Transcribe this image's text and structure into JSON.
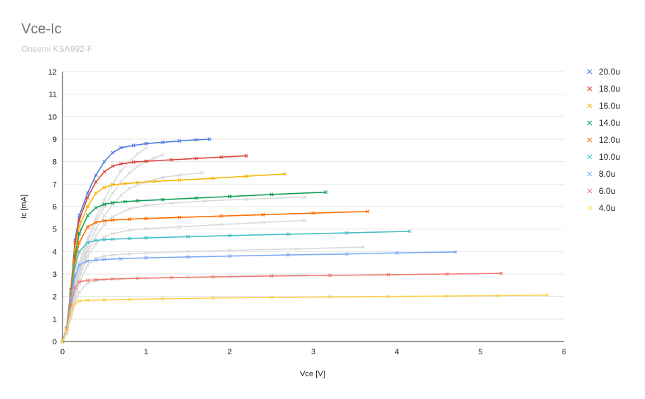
{
  "chart_data": {
    "type": "line",
    "title": "Vce-Ic",
    "subtitle": "Onsemi KSA992-F",
    "xlabel": "Vce [V]",
    "ylabel": "Ic [mA]",
    "xlim": [
      0,
      6
    ],
    "ylim": [
      0,
      12
    ],
    "x_ticks": [
      "0",
      "1",
      "2",
      "3",
      "4",
      "5",
      "6"
    ],
    "y_ticks": [
      "0",
      "1",
      "2",
      "3",
      "4",
      "5",
      "6",
      "7",
      "8",
      "9",
      "10",
      "11",
      "12"
    ],
    "grid": "horizontal",
    "legend_position": "right",
    "marker": "×",
    "series": [
      {
        "name": "20.0u",
        "color": "#4a7de0",
        "x": [
          0,
          0.05,
          0.1,
          0.15,
          0.2,
          0.3,
          0.4,
          0.5,
          0.6,
          0.7,
          0.85,
          1.0,
          1.2,
          1.4,
          1.6,
          1.76
        ],
        "y": [
          0,
          0.6,
          2.3,
          4.5,
          5.6,
          6.6,
          7.4,
          8.0,
          8.4,
          8.62,
          8.72,
          8.8,
          8.86,
          8.92,
          8.97,
          9.0
        ]
      },
      {
        "name": "18.0u",
        "color": "#db4437",
        "x": [
          0,
          0.05,
          0.1,
          0.15,
          0.2,
          0.3,
          0.4,
          0.5,
          0.6,
          0.7,
          0.85,
          1.0,
          1.3,
          1.6,
          1.9,
          2.2
        ],
        "y": [
          0,
          0.6,
          2.3,
          4.4,
          5.4,
          6.4,
          7.1,
          7.55,
          7.8,
          7.9,
          7.98,
          8.02,
          8.08,
          8.14,
          8.2,
          8.26
        ]
      },
      {
        "name": "16.0u",
        "color": "#f4b400",
        "x": [
          0,
          0.05,
          0.1,
          0.15,
          0.2,
          0.3,
          0.4,
          0.5,
          0.6,
          0.75,
          0.9,
          1.1,
          1.4,
          1.8,
          2.2,
          2.66
        ],
        "y": [
          0,
          0.6,
          2.2,
          4.1,
          5.1,
          6.0,
          6.6,
          6.85,
          6.97,
          7.02,
          7.07,
          7.12,
          7.18,
          7.26,
          7.35,
          7.45
        ]
      },
      {
        "name": "14.0u",
        "color": "#0f9d58",
        "x": [
          0,
          0.05,
          0.1,
          0.15,
          0.2,
          0.3,
          0.4,
          0.5,
          0.6,
          0.75,
          0.9,
          1.2,
          1.6,
          2.0,
          2.5,
          3.15
        ],
        "y": [
          0,
          0.6,
          2.1,
          3.8,
          4.8,
          5.6,
          5.95,
          6.1,
          6.17,
          6.22,
          6.26,
          6.31,
          6.38,
          6.45,
          6.54,
          6.64
        ]
      },
      {
        "name": "12.0u",
        "color": "#ff6d01",
        "x": [
          0,
          0.05,
          0.1,
          0.15,
          0.2,
          0.3,
          0.4,
          0.5,
          0.6,
          0.8,
          1.0,
          1.4,
          1.9,
          2.4,
          3.0,
          3.65
        ],
        "y": [
          0,
          0.6,
          2.0,
          3.6,
          4.4,
          5.1,
          5.3,
          5.37,
          5.4,
          5.44,
          5.47,
          5.52,
          5.58,
          5.64,
          5.71,
          5.78
        ]
      },
      {
        "name": "10.0u",
        "color": "#46bdc6",
        "x": [
          0,
          0.05,
          0.1,
          0.15,
          0.2,
          0.3,
          0.4,
          0.5,
          0.6,
          0.8,
          1.0,
          1.5,
          2.0,
          2.7,
          3.4,
          4.15
        ],
        "y": [
          0,
          0.6,
          1.9,
          3.3,
          4.0,
          4.4,
          4.5,
          4.53,
          4.55,
          4.58,
          4.61,
          4.66,
          4.71,
          4.77,
          4.83,
          4.9
        ]
      },
      {
        "name": "8.0u",
        "color": "#7baaf7",
        "x": [
          0,
          0.05,
          0.1,
          0.15,
          0.2,
          0.3,
          0.4,
          0.5,
          0.7,
          1.0,
          1.5,
          2.0,
          2.7,
          3.4,
          4.0,
          4.7
        ],
        "y": [
          0,
          0.6,
          1.8,
          2.9,
          3.4,
          3.58,
          3.62,
          3.65,
          3.68,
          3.72,
          3.76,
          3.8,
          3.85,
          3.89,
          3.94,
          3.98
        ]
      },
      {
        "name": "6.0u",
        "color": "#f07b72",
        "x": [
          0,
          0.05,
          0.1,
          0.15,
          0.2,
          0.3,
          0.4,
          0.6,
          0.9,
          1.3,
          1.8,
          2.5,
          3.2,
          3.9,
          4.6,
          5.25
        ],
        "y": [
          0,
          0.55,
          1.6,
          2.4,
          2.65,
          2.72,
          2.75,
          2.78,
          2.81,
          2.84,
          2.87,
          2.91,
          2.94,
          2.97,
          3.0,
          3.03
        ]
      },
      {
        "name": "4.0u",
        "color": "#fcd04f",
        "x": [
          0,
          0.05,
          0.1,
          0.15,
          0.2,
          0.3,
          0.5,
          0.8,
          1.2,
          1.8,
          2.5,
          3.2,
          3.9,
          4.6,
          5.2,
          5.8
        ],
        "y": [
          0,
          0.5,
          1.3,
          1.7,
          1.8,
          1.83,
          1.85,
          1.87,
          1.9,
          1.93,
          1.96,
          1.98,
          2.0,
          2.02,
          2.04,
          2.06
        ]
      }
    ],
    "reference_series": [
      {
        "color": "#d9d9d9",
        "x": [
          0,
          0.05,
          0.1,
          0.15,
          0.2,
          0.3,
          0.4,
          0.5,
          0.6,
          0.7,
          0.8,
          0.9,
          1.0
        ],
        "y": [
          0,
          0.4,
          1.4,
          2.6,
          3.5,
          4.6,
          5.5,
          6.3,
          7.0,
          7.6,
          8.0,
          8.35,
          8.6
        ]
      },
      {
        "color": "#d9d9d9",
        "x": [
          0,
          0.05,
          0.1,
          0.15,
          0.2,
          0.3,
          0.4,
          0.5,
          0.6,
          0.7,
          0.8,
          0.9,
          1.0,
          1.1,
          1.2
        ],
        "y": [
          0,
          0.4,
          1.3,
          2.4,
          3.3,
          4.4,
          5.3,
          6.0,
          6.6,
          7.1,
          7.5,
          7.8,
          8.0,
          8.17,
          8.3
        ]
      },
      {
        "color": "#d9d9d9",
        "x": [
          0,
          0.05,
          0.1,
          0.15,
          0.2,
          0.3,
          0.4,
          0.5,
          0.6,
          0.7,
          0.8,
          1.0,
          1.2,
          1.4,
          1.67
        ],
        "y": [
          0,
          0.4,
          1.3,
          2.3,
          3.1,
          4.2,
          5.0,
          5.6,
          6.1,
          6.5,
          6.8,
          7.1,
          7.3,
          7.4,
          7.5
        ]
      },
      {
        "color": "#d9d9d9",
        "x": [
          0,
          0.05,
          0.1,
          0.15,
          0.2,
          0.3,
          0.4,
          0.5,
          0.6,
          0.8,
          1.0,
          1.3,
          1.7,
          2.2,
          2.9
        ],
        "y": [
          0,
          0.4,
          1.2,
          2.2,
          3.0,
          4.0,
          4.7,
          5.2,
          5.55,
          5.9,
          6.05,
          6.15,
          6.25,
          6.33,
          6.42
        ]
      },
      {
        "color": "#d9d9d9",
        "x": [
          0,
          0.05,
          0.1,
          0.15,
          0.2,
          0.3,
          0.4,
          0.5,
          0.6,
          0.8,
          1.0,
          1.4,
          1.9,
          2.4,
          2.9
        ],
        "y": [
          0,
          0.4,
          1.2,
          2.1,
          2.8,
          3.8,
          4.35,
          4.65,
          4.8,
          4.95,
          5.02,
          5.1,
          5.2,
          5.3,
          5.38
        ]
      },
      {
        "color": "#d9d9d9",
        "x": [
          0,
          0.05,
          0.1,
          0.15,
          0.2,
          0.3,
          0.4,
          0.5,
          0.6,
          0.8,
          1.0,
          1.5,
          2.0,
          2.8,
          3.6
        ],
        "y": [
          0,
          0.4,
          1.1,
          1.9,
          2.6,
          3.4,
          3.7,
          3.8,
          3.85,
          3.9,
          3.94,
          4.0,
          4.05,
          4.12,
          4.2
        ]
      },
      {
        "color": "#d9d9d9",
        "x": [
          0,
          0.05,
          0.1,
          0.15,
          0.2,
          0.3,
          0.4,
          0.5,
          0.7,
          1.0,
          1.5,
          2.0,
          2.5,
          2.9
        ],
        "y": [
          0,
          0.35,
          1.0,
          1.7,
          2.2,
          2.6,
          2.7,
          2.74,
          2.78,
          2.82,
          2.86,
          2.9,
          2.93,
          2.96
        ]
      }
    ]
  }
}
